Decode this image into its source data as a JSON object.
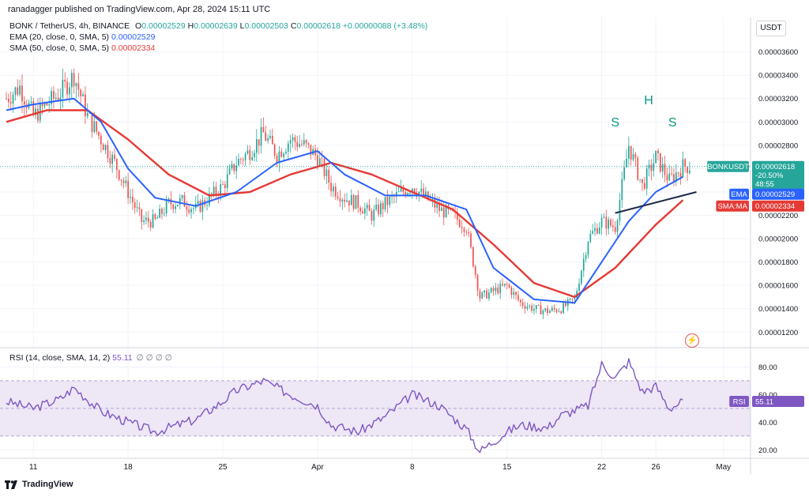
{
  "header": {
    "published_by": "ranadagger published on TradingView.com, Apr 28, 2024 15:11 UTC",
    "symbol_line": "BONK / TetherUS, 4h, BINANCE",
    "ohlc": {
      "o_label": "O",
      "o": "0.00002529",
      "h_label": "H",
      "h": "0.00002639",
      "l_label": "L",
      "l": "0.00002503",
      "c_label": "C",
      "c": "0.00002618",
      "change": "+0.00000088 (+3.48%)"
    },
    "ema_line": {
      "label": "EMA (20, close, 0, SMA, 5)",
      "value": "0.00002529"
    },
    "sma_line": {
      "label": "SMA (50, close, 0, SMA, 5)",
      "value": "0.00002334"
    },
    "rsi_line": {
      "label": "RSI (14, close, SMA, 14, 2)",
      "value": "55.11",
      "extras": "∅ ∅ ∅ ∅"
    }
  },
  "currency_label": "USDT",
  "badges": {
    "price": {
      "name": "BONKUSDT",
      "value": "0.00002618",
      "pct": "-20.50%",
      "countdown": "48:55"
    },
    "ema": {
      "name": "EMA",
      "value": "0.00002529"
    },
    "sma": {
      "name": "SMA:MA",
      "value": "0.00002334"
    },
    "rsi": {
      "name": "RSI",
      "value": "55.11"
    }
  },
  "annotations": [
    "S",
    "H",
    "S"
  ],
  "footer": {
    "brand": "TradingView"
  },
  "colors": {
    "up": "#26a69a",
    "down": "#ef5350",
    "ema": "#2962ff",
    "sma": "#e53935",
    "neckline": "#1e2a4a",
    "rsi_line": "#7e57c2",
    "rsi_band": "#ede7f6"
  },
  "chart_data": [
    {
      "type": "candlestick",
      "title": "BONK / TetherUS, 4h, BINANCE",
      "x_tick_labels": [
        "11",
        "18",
        "25",
        "Apr",
        "8",
        "15",
        "22",
        "26",
        "May"
      ],
      "y_tick_labels": [
        "0.00003600",
        "0.00003400",
        "0.00003200",
        "0.00003000",
        "0.00002800",
        "0.00002600",
        "0.00002400",
        "0.00002200",
        "0.00002000",
        "0.00001800",
        "0.00001600",
        "0.00001400",
        "0.00001200"
      ],
      "ylim": [
        1.08e-05,
        3.76e-05
      ],
      "price_path": [
        {
          "date": "Mar 9",
          "price": 3.2e-05
        },
        {
          "date": "Mar 10",
          "price": 3.3e-05
        },
        {
          "date": "Mar 11",
          "price": 3.05e-05
        },
        {
          "date": "Mar 12",
          "price": 3.15e-05
        },
        {
          "date": "Mar 13",
          "price": 3.25e-05
        },
        {
          "date": "Mar 14",
          "price": 3.4e-05
        },
        {
          "date": "Mar 15",
          "price": 3.05e-05
        },
        {
          "date": "Mar 16",
          "price": 2.85e-05
        },
        {
          "date": "Mar 17",
          "price": 2.65e-05
        },
        {
          "date": "Mar 18",
          "price": 2.4e-05
        },
        {
          "date": "Mar 19",
          "price": 2.15e-05
        },
        {
          "date": "Mar 20",
          "price": 2.15e-05
        },
        {
          "date": "Mar 21",
          "price": 2.3e-05
        },
        {
          "date": "Mar 22",
          "price": 2.32e-05
        },
        {
          "date": "Mar 23",
          "price": 2.25e-05
        },
        {
          "date": "Mar 24",
          "price": 2.35e-05
        },
        {
          "date": "Mar 25",
          "price": 2.45e-05
        },
        {
          "date": "Mar 26",
          "price": 2.65e-05
        },
        {
          "date": "Mar 27",
          "price": 2.75e-05
        },
        {
          "date": "Mar 28",
          "price": 2.9e-05
        },
        {
          "date": "Mar 29",
          "price": 2.72e-05
        },
        {
          "date": "Mar 30",
          "price": 2.85e-05
        },
        {
          "date": "Mar 31",
          "price": 2.8e-05
        },
        {
          "date": "Apr 1",
          "price": 2.7e-05
        },
        {
          "date": "Apr 2",
          "price": 2.45e-05
        },
        {
          "date": "Apr 3",
          "price": 2.35e-05
        },
        {
          "date": "Apr 4",
          "price": 2.3e-05
        },
        {
          "date": "Apr 5",
          "price": 2.2e-05
        },
        {
          "date": "Apr 6",
          "price": 2.3e-05
        },
        {
          "date": "Apr 7",
          "price": 2.38e-05
        },
        {
          "date": "Apr 8",
          "price": 2.45e-05
        },
        {
          "date": "Apr 9",
          "price": 2.35e-05
        },
        {
          "date": "Apr 10",
          "price": 2.25e-05
        },
        {
          "date": "Apr 11",
          "price": 2.2e-05
        },
        {
          "date": "Apr 12",
          "price": 2.1e-05
        },
        {
          "date": "Apr 13",
          "price": 1.5e-05
        },
        {
          "date": "Apr 14",
          "price": 1.55e-05
        },
        {
          "date": "Apr 15",
          "price": 1.6e-05
        },
        {
          "date": "Apr 16",
          "price": 1.45e-05
        },
        {
          "date": "Apr 17",
          "price": 1.4e-05
        },
        {
          "date": "Apr 18",
          "price": 1.38e-05
        },
        {
          "date": "Apr 19",
          "price": 1.4e-05
        },
        {
          "date": "Apr 20",
          "price": 1.48e-05
        },
        {
          "date": "Apr 21",
          "price": 2e-05
        },
        {
          "date": "Apr 22",
          "price": 2.15e-05
        },
        {
          "date": "Apr 23",
          "price": 2.1e-05
        },
        {
          "date": "Apr 24",
          "price": 2.8e-05
        },
        {
          "date": "Apr 25",
          "price": 2.45e-05
        },
        {
          "date": "Apr 26",
          "price": 2.7e-05
        },
        {
          "date": "Apr 27",
          "price": 2.5e-05
        },
        {
          "date": "Apr 28",
          "price": 2.62e-05
        }
      ],
      "ema_20": [
        {
          "date": "Mar 9",
          "value": 3.1e-05
        },
        {
          "date": "Mar 11",
          "value": 3.15e-05
        },
        {
          "date": "Mar 14",
          "value": 3.2e-05
        },
        {
          "date": "Mar 16",
          "value": 3e-05
        },
        {
          "date": "Mar 18",
          "value": 2.6e-05
        },
        {
          "date": "Mar 20",
          "value": 2.35e-05
        },
        {
          "date": "Mar 23",
          "value": 2.28e-05
        },
        {
          "date": "Mar 26",
          "value": 2.4e-05
        },
        {
          "date": "Mar 29",
          "value": 2.65e-05
        },
        {
          "date": "Apr 1",
          "value": 2.75e-05
        },
        {
          "date": "Apr 3",
          "value": 2.55e-05
        },
        {
          "date": "Apr 6",
          "value": 2.37e-05
        },
        {
          "date": "Apr 9",
          "value": 2.37e-05
        },
        {
          "date": "Apr 12",
          "value": 2.25e-05
        },
        {
          "date": "Apr 14",
          "value": 1.75e-05
        },
        {
          "date": "Apr 17",
          "value": 1.48e-05
        },
        {
          "date": "Apr 20",
          "value": 1.45e-05
        },
        {
          "date": "Apr 22",
          "value": 1.8e-05
        },
        {
          "date": "Apr 24",
          "value": 2.15e-05
        },
        {
          "date": "Apr 26",
          "value": 2.4e-05
        },
        {
          "date": "Apr 28",
          "value": 2.53e-05
        }
      ],
      "sma_50": [
        {
          "date": "Mar 9",
          "value": 3e-05
        },
        {
          "date": "Mar 12",
          "value": 3.1e-05
        },
        {
          "date": "Mar 15",
          "value": 3.1e-05
        },
        {
          "date": "Mar 18",
          "value": 2.85e-05
        },
        {
          "date": "Mar 21",
          "value": 2.55e-05
        },
        {
          "date": "Mar 24",
          "value": 2.37e-05
        },
        {
          "date": "Mar 27",
          "value": 2.4e-05
        },
        {
          "date": "Mar 30",
          "value": 2.55e-05
        },
        {
          "date": "Apr 2",
          "value": 2.65e-05
        },
        {
          "date": "Apr 5",
          "value": 2.55e-05
        },
        {
          "date": "Apr 8",
          "value": 2.4e-05
        },
        {
          "date": "Apr 11",
          "value": 2.25e-05
        },
        {
          "date": "Apr 14",
          "value": 1.95e-05
        },
        {
          "date": "Apr 17",
          "value": 1.62e-05
        },
        {
          "date": "Apr 20",
          "value": 1.5e-05
        },
        {
          "date": "Apr 23",
          "value": 1.75e-05
        },
        {
          "date": "Apr 26",
          "value": 2.12e-05
        },
        {
          "date": "Apr 28",
          "value": 2.33e-05
        }
      ],
      "neckline": [
        {
          "date": "Apr 23",
          "value": 2.22e-05
        },
        {
          "date": "Apr 29",
          "value": 2.4e-05
        }
      ]
    },
    {
      "type": "line",
      "title": "RSI (14, close, SMA, 14, 2)",
      "y_tick_labels": [
        "80.00",
        "60.00",
        "40.00",
        "20.00"
      ],
      "ylim": [
        15,
        90
      ],
      "band": [
        30,
        70
      ],
      "rsi": [
        {
          "date": "Mar 9",
          "value": 55
        },
        {
          "date": "Mar 11",
          "value": 50
        },
        {
          "date": "Mar 13",
          "value": 57
        },
        {
          "date": "Mar 14",
          "value": 65
        },
        {
          "date": "Mar 16",
          "value": 48
        },
        {
          "date": "Mar 18",
          "value": 40
        },
        {
          "date": "Mar 20",
          "value": 33
        },
        {
          "date": "Mar 23",
          "value": 42
        },
        {
          "date": "Mar 25",
          "value": 55
        },
        {
          "date": "Mar 26",
          "value": 63
        },
        {
          "date": "Mar 28",
          "value": 70
        },
        {
          "date": "Mar 30",
          "value": 60
        },
        {
          "date": "Apr 1",
          "value": 52
        },
        {
          "date": "Apr 2",
          "value": 38
        },
        {
          "date": "Apr 4",
          "value": 33
        },
        {
          "date": "Apr 6",
          "value": 44
        },
        {
          "date": "Apr 8",
          "value": 60
        },
        {
          "date": "Apr 10",
          "value": 52
        },
        {
          "date": "Apr 12",
          "value": 35
        },
        {
          "date": "Apr 13",
          "value": 19
        },
        {
          "date": "Apr 15",
          "value": 33
        },
        {
          "date": "Apr 16",
          "value": 38
        },
        {
          "date": "Apr 18",
          "value": 36
        },
        {
          "date": "Apr 19",
          "value": 45
        },
        {
          "date": "Apr 21",
          "value": 52
        },
        {
          "date": "Apr 22",
          "value": 82
        },
        {
          "date": "Apr 23",
          "value": 72
        },
        {
          "date": "Apr 24",
          "value": 84
        },
        {
          "date": "Apr 25",
          "value": 62
        },
        {
          "date": "Apr 26",
          "value": 66
        },
        {
          "date": "Apr 27",
          "value": 50
        },
        {
          "date": "Apr 28",
          "value": 55
        }
      ]
    }
  ]
}
